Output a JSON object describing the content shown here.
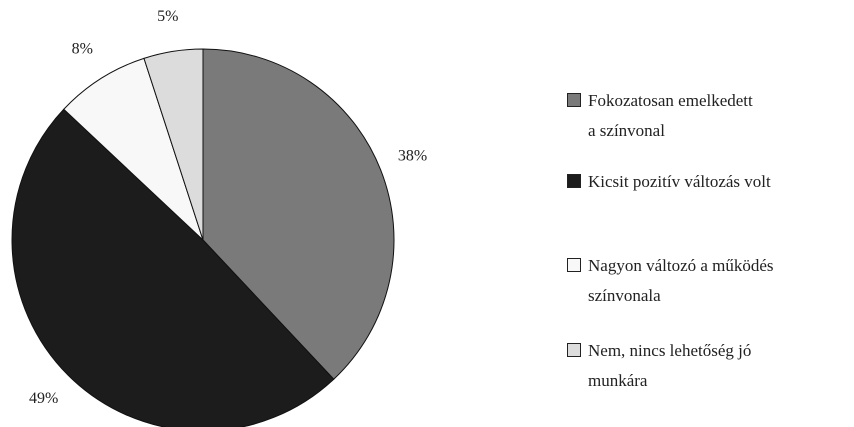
{
  "chart_data": {
    "type": "pie",
    "series": [
      {
        "name": "Fokozatosan emelkedett\na színvonal",
        "color": "#7a7a7a",
        "value": 38,
        "value_label": "38%"
      },
      {
        "name": "Kicsit pozitív változás volt",
        "color": "#1c1c1c",
        "value": 49,
        "value_label": "49%"
      },
      {
        "name": "Nagyon változó a működés\nszínvonala",
        "color": "#f8f8f8",
        "value": 8,
        "value_label": "8%"
      },
      {
        "name": "Nem, nincs lehetőség jó\nmunkára",
        "color": "#dcdcdc",
        "value": 5,
        "value_label": "5%"
      }
    ]
  }
}
